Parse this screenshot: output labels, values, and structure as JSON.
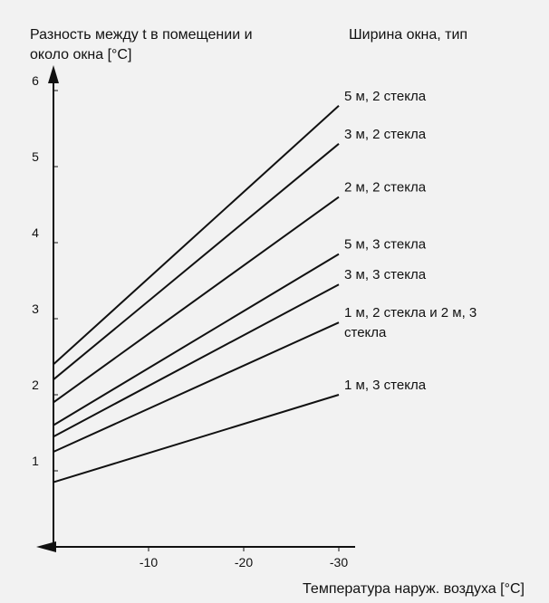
{
  "chart_data": {
    "type": "line",
    "ylabel_lines": [
      "Разность между t в помещении и",
      "около окна [°C]"
    ],
    "legend_title": "Ширина окна, тип",
    "xlabel": "Температура наруж. воздуха [°C]",
    "y_ticks": [
      "1",
      "2",
      "3",
      "4",
      "5",
      "6"
    ],
    "x_ticks": [
      "-10",
      "-20",
      "-30"
    ],
    "xlim": [
      0,
      -30
    ],
    "ylim": [
      0,
      6
    ],
    "series": [
      {
        "name": "5 м, 2 стекла",
        "label_lines": [
          "5 м, 2 стекла"
        ],
        "x": [
          0,
          -30
        ],
        "values": [
          2.4,
          5.8
        ]
      },
      {
        "name": "3 м, 2 стекла",
        "label_lines": [
          "3 м, 2 стекла"
        ],
        "x": [
          0,
          -30
        ],
        "values": [
          2.2,
          5.3
        ]
      },
      {
        "name": "2 м, 2 стекла",
        "label_lines": [
          "2 м, 2 стекла"
        ],
        "x": [
          0,
          -30
        ],
        "values": [
          1.9,
          4.6
        ]
      },
      {
        "name": "5 м, 3 стекла",
        "label_lines": [
          "5 м, 3 стекла"
        ],
        "x": [
          0,
          -30
        ],
        "values": [
          1.6,
          3.85
        ]
      },
      {
        "name": "3 м, 3 стекла",
        "label_lines": [
          "3 м, 3 стекла"
        ],
        "x": [
          0,
          -30
        ],
        "values": [
          1.45,
          3.45
        ]
      },
      {
        "name": "1 м, 2 стекла и 2 м, 3 стекла",
        "label_lines": [
          "1 м, 2 стекла и 2 м, 3",
          "стекла"
        ],
        "x": [
          0,
          -30
        ],
        "values": [
          1.25,
          2.95
        ]
      },
      {
        "name": "1 м, 3 стекла",
        "label_lines": [
          "1 м, 3 стекла"
        ],
        "x": [
          0,
          -30
        ],
        "values": [
          0.85,
          2.0
        ]
      }
    ]
  }
}
